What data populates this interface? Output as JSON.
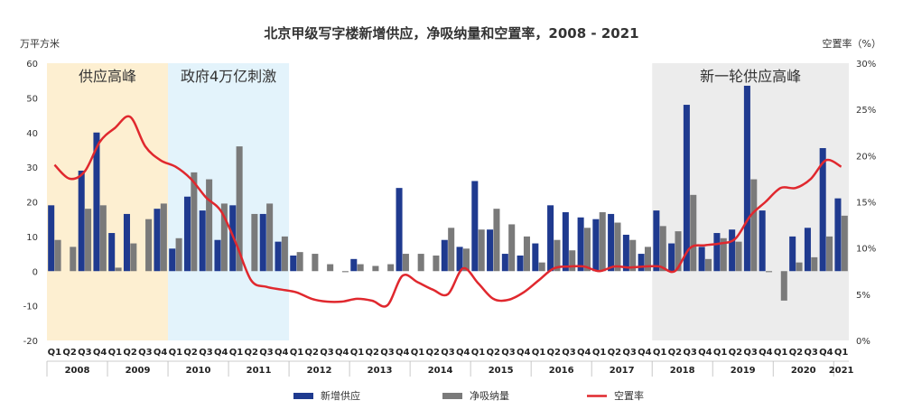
{
  "chart_data": {
    "type": "bar",
    "title": "北京甲级写字楼新增供应，净吸纳量和空置率，2008 - 2021",
    "ylabel_left": "万平方米",
    "ylabel_right": "空置率（%）",
    "ylim_left": [
      -20,
      60
    ],
    "yticks_left": [
      "60",
      "50",
      "40",
      "30",
      "20",
      "10",
      "0",
      "-10",
      "-20"
    ],
    "ylim_right": [
      0,
      30
    ],
    "yticks_right": [
      "30%",
      "25%",
      "20%",
      "15%",
      "10%",
      "5%",
      "0%"
    ],
    "quarters": [
      "Q1",
      "Q2",
      "Q3",
      "Q4",
      "Q1",
      "Q2",
      "Q3",
      "Q4",
      "Q1",
      "Q2",
      "Q3",
      "Q4",
      "Q1",
      "Q2",
      "Q3",
      "Q4",
      "Q1",
      "Q2",
      "Q3",
      "Q4",
      "Q1",
      "Q2",
      "Q3",
      "Q4",
      "Q1",
      "Q2",
      "Q3",
      "Q4",
      "Q1",
      "Q2",
      "Q3",
      "Q4",
      "Q1",
      "Q2",
      "Q3",
      "Q4",
      "Q1",
      "Q2",
      "Q3",
      "Q4",
      "Q1",
      "Q2",
      "Q3",
      "Q4",
      "Q1",
      "Q2",
      "Q3",
      "Q4",
      "Q1",
      "Q2",
      "Q3",
      "Q4",
      "Q1"
    ],
    "years": [
      "2008",
      "2009",
      "2010",
      "2011",
      "2012",
      "2013",
      "2014",
      "2015",
      "2016",
      "2017",
      "2018",
      "2019",
      "2020",
      "2021"
    ],
    "series": [
      {
        "name": "新增供应",
        "color": "#1f3a8f",
        "values": [
          19,
          0,
          29,
          40,
          11,
          16.5,
          0,
          18,
          6.5,
          21.5,
          17.5,
          9,
          19,
          0,
          16.5,
          8.5,
          4.5,
          0,
          0,
          0,
          3.5,
          0,
          0,
          24,
          0,
          0,
          9,
          7,
          26,
          12,
          5,
          4.5,
          8,
          19,
          17,
          15.5,
          15,
          16.5,
          10.5,
          5,
          17.5,
          8,
          48,
          7,
          11,
          12,
          53.5,
          17.5,
          0,
          10,
          12.5,
          35.5,
          21
        ]
      },
      {
        "name": "净吸纳量",
        "color": "#7a7a7a",
        "values": [
          9,
          7,
          18,
          19,
          1,
          8,
          15,
          19.5,
          9.5,
          28.5,
          26.5,
          19.5,
          36,
          16.5,
          19.5,
          10,
          5.5,
          5,
          2,
          -0.3,
          2,
          1.5,
          2,
          5,
          5,
          4.5,
          12.5,
          6.5,
          12,
          18,
          13.5,
          10,
          2.5,
          9,
          6,
          12.5,
          17,
          14,
          9,
          7,
          13,
          11.5,
          22,
          3.5,
          9.5,
          8.5,
          26.5,
          -0.3,
          -8.5,
          2.5,
          4,
          10,
          16
        ]
      },
      {
        "name": "空置率",
        "color": "#e0282e",
        "values": [
          19,
          17.5,
          18.3,
          21.5,
          23,
          24.2,
          21,
          19.5,
          18.8,
          17.5,
          15.5,
          14,
          10.5,
          6.5,
          5.8,
          5.5,
          5.2,
          4.5,
          4.2,
          4.2,
          4.5,
          4.3,
          3.8,
          7,
          6.3,
          5.5,
          5,
          7.8,
          6.2,
          4.5,
          4.4,
          5.2,
          6.5,
          7.8,
          8,
          8,
          7.5,
          8,
          7.9,
          8,
          8,
          7.5,
          10,
          10.3,
          10.5,
          11,
          13.5,
          15,
          16.5,
          16.5,
          17.5,
          19.5,
          18.8
        ]
      }
    ],
    "bands": [
      {
        "label": "供应高峰",
        "color": "#fdefd1"
      },
      {
        "label": "政府4万亿刺激",
        "color": "#e3f3fb"
      },
      {
        "label": "新一轮供应高峰",
        "color": "#ececec"
      }
    ],
    "legend_position": "bottom",
    "grid": false
  }
}
